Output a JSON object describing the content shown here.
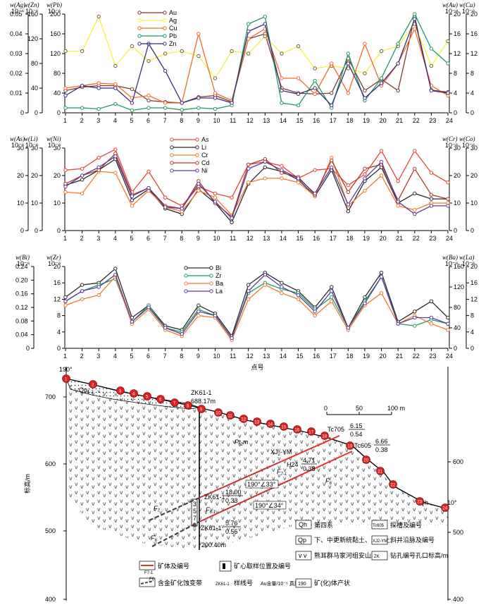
{
  "chart_data": [
    {
      "type": "line",
      "x": [
        1,
        2,
        3,
        4,
        5,
        6,
        7,
        8,
        9,
        10,
        11,
        12,
        13,
        14,
        15,
        16,
        17,
        18,
        19,
        20,
        21,
        22,
        23,
        24
      ],
      "left_axes": [
        {
          "label": "w(Ag)",
          "unit": "10⁻⁶",
          "ylim": [
            0,
            0.05
          ],
          "ticks": [
            "0",
            "0.01",
            "0.02",
            "0.03",
            "0.04",
            "0.05"
          ]
        },
        {
          "label": "w(Zn)",
          "unit": "10⁻⁶",
          "ylim": [
            0,
            160
          ],
          "ticks": [
            "0",
            "40",
            "80",
            "120",
            "160"
          ]
        },
        {
          "label": "w(Pb)",
          "unit": "10⁻⁶",
          "ylim": [
            0,
            200
          ],
          "ticks": [
            "0",
            "40",
            "80",
            "120",
            "160",
            "200"
          ]
        }
      ],
      "right_axes": [
        {
          "label": "w(Au)",
          "unit": "10⁻⁹",
          "ylim": [
            0,
            20
          ],
          "ticks": [
            "0",
            "4",
            "8",
            "12",
            "16",
            "20"
          ]
        },
        {
          "label": "w(Cu)",
          "unit": "10⁻⁶",
          "ylim": [
            0,
            20
          ],
          "ticks": [
            "0",
            "4",
            "8",
            "12",
            "16",
            "20"
          ]
        }
      ],
      "series": [
        {
          "name": "Au",
          "color": "#7a3b2e",
          "values": [
            4.5,
            5.2,
            5.5,
            5.5,
            4.8,
            2.5,
            2.2,
            2.0,
            3.2,
            3.5,
            2.2,
            15.0,
            16.0,
            5.0,
            4.0,
            3.8,
            4.0,
            11.0,
            4.5,
            6.8,
            4.5,
            19.5,
            4.6,
            4.2
          ]
        },
        {
          "name": "Ag",
          "color": "#f7ef3a",
          "values": [
            12.5,
            12.5,
            19.5,
            9.5,
            13.5,
            10.5,
            12.0,
            12.5,
            11.5,
            7.0,
            12.5,
            12.0,
            15.5,
            12.0,
            13.5,
            9.0,
            9.5,
            9.0,
            8.0,
            12.5,
            13.5,
            18.0,
            9.5,
            14.5
          ]
        },
        {
          "name": "Cu",
          "color": "#f06a2a",
          "values": [
            5.0,
            5.5,
            6.0,
            5.8,
            3.0,
            3.5,
            2.0,
            2.0,
            16.0,
            4.0,
            2.5,
            15.0,
            17.0,
            7.0,
            7.0,
            3.8,
            10.0,
            4.0,
            14.0,
            5.5,
            10.0,
            17.0,
            5.5,
            3.5
          ]
        },
        {
          "name": "Pb",
          "color": "#1e9a5e",
          "values": [
            1.0,
            1.0,
            0.8,
            1.8,
            0.5,
            1.0,
            1.0,
            0.6,
            1.0,
            0.8,
            1.5,
            18.0,
            19.5,
            2.0,
            1.5,
            6.5,
            1.0,
            12.0,
            2.5,
            7.0,
            14.0,
            20.0,
            13.0,
            10.0
          ]
        },
        {
          "name": "Zn",
          "color": "#3d2b7a",
          "values": [
            3.5,
            5.5,
            5.0,
            5.0,
            2.0,
            14.0,
            8.5,
            2.0,
            3.0,
            3.0,
            2.0,
            16.5,
            18.0,
            4.5,
            3.8,
            5.0,
            1.5,
            10.0,
            3.0,
            6.0,
            10.0,
            19.0,
            4.5,
            4.0
          ]
        }
      ],
      "xlabel": ""
    },
    {
      "type": "line",
      "x": [
        1,
        2,
        3,
        4,
        5,
        6,
        7,
        8,
        9,
        10,
        11,
        12,
        13,
        14,
        15,
        16,
        17,
        18,
        19,
        20,
        21,
        22,
        23,
        24
      ],
      "left_axes": [
        {
          "label": "w(As)",
          "unit": "10⁻⁶",
          "ylim": [
            0,
            30
          ],
          "ticks": [
            "0",
            "10",
            "20",
            "30"
          ]
        },
        {
          "label": "w(Li)",
          "unit": "10⁻⁶",
          "ylim": [
            0,
            30
          ],
          "ticks": [
            "0",
            "10",
            "20",
            "30"
          ]
        },
        {
          "label": "w(Ni)",
          "unit": "10⁻⁶",
          "ylim": [
            0,
            30
          ],
          "ticks": [
            "0",
            "10",
            "20",
            "30"
          ]
        }
      ],
      "right_axes": [
        {
          "label": "w(Cr)",
          "unit": "10⁻⁶",
          "ylim": [
            0,
            30
          ],
          "ticks": [
            "0",
            "10",
            "20",
            "30"
          ]
        },
        {
          "label": "w(Co)",
          "unit": "10⁻⁶",
          "ylim": [
            0,
            30
          ],
          "ticks": [
            "0",
            "10",
            "20",
            "30"
          ]
        }
      ],
      "series": [
        {
          "name": "As",
          "color": "#e8433a",
          "values": [
            22.0,
            22.5,
            26.5,
            29.5,
            14.0,
            21.5,
            12.0,
            9.0,
            16.0,
            13.5,
            12.0,
            24.0,
            25.0,
            23.5,
            19.0,
            22.0,
            22.5,
            16.5,
            20.5,
            29.0,
            18.0,
            29.0,
            21.0,
            17.5
          ]
        },
        {
          "name": "Li",
          "color": "#2a2a2a",
          "values": [
            16.5,
            18.5,
            22.0,
            26.0,
            11.0,
            15.0,
            8.0,
            6.0,
            15.0,
            10.0,
            3.0,
            17.0,
            23.0,
            21.5,
            18.5,
            12.5,
            22.0,
            7.0,
            18.0,
            23.0,
            10.0,
            13.5,
            11.5,
            11.5
          ]
        },
        {
          "name": "Cr",
          "color": "#f07a2a",
          "values": [
            14.0,
            13.5,
            21.5,
            21.0,
            9.0,
            14.5,
            8.5,
            7.0,
            14.5,
            12.0,
            5.5,
            17.5,
            19.0,
            19.0,
            17.5,
            12.5,
            26.5,
            9.0,
            14.5,
            20.0,
            9.0,
            7.5,
            10.0,
            10.0
          ]
        },
        {
          "name": "Cd",
          "color": "#b03a2a",
          "values": [
            17.0,
            20.0,
            22.0,
            28.0,
            13.0,
            15.5,
            9.0,
            8.0,
            18.0,
            10.0,
            5.0,
            24.0,
            26.0,
            21.0,
            19.5,
            13.0,
            25.5,
            14.0,
            22.5,
            24.0,
            11.0,
            22.5,
            13.0,
            11.5
          ]
        },
        {
          "name": "Ni",
          "color": "#5a3a9a",
          "values": [
            16.0,
            20.0,
            23.0,
            27.0,
            12.5,
            15.5,
            8.5,
            8.0,
            17.0,
            10.5,
            4.5,
            22.5,
            25.0,
            22.0,
            19.0,
            13.5,
            23.0,
            9.5,
            19.0,
            25.0,
            10.5,
            6.0,
            9.0,
            9.0
          ]
        }
      ],
      "xlabel": ""
    },
    {
      "type": "line",
      "x": [
        1,
        2,
        3,
        4,
        5,
        6,
        7,
        8,
        9,
        10,
        11,
        12,
        13,
        14,
        15,
        16,
        17,
        18,
        19,
        20,
        21,
        22,
        23,
        24
      ],
      "left_axes": [
        {
          "label": "w(Bi)",
          "unit": "10⁻⁶",
          "ylim": [
            0,
            0.24
          ],
          "ticks": [
            "0",
            "0.04",
            "0.08",
            "0.12",
            "0.16",
            "0.20",
            "0.24"
          ]
        },
        {
          "label": "w(Zr)",
          "unit": "10⁻⁶",
          "ylim": [
            0,
            20
          ],
          "ticks": [
            "0",
            "4",
            "8",
            "12",
            "16",
            "20"
          ]
        }
      ],
      "right_axes": [
        {
          "label": "w(Ba)",
          "unit": "10⁻⁶",
          "ylim": [
            0,
            160
          ],
          "ticks": [
            "0",
            "40",
            "80",
            "120",
            "160"
          ]
        },
        {
          "label": "w(La)",
          "unit": "10⁻⁶",
          "ylim": [
            0,
            20
          ],
          "ticks": [
            "0",
            "4",
            "8",
            "12",
            "16",
            "20"
          ]
        }
      ],
      "series": [
        {
          "name": "Bi",
          "color": "#2a2a2a",
          "values": [
            12.5,
            15.5,
            16.0,
            19.5,
            7.5,
            10.5,
            5.5,
            4.5,
            10.5,
            8.5,
            3.0,
            15.5,
            18.5,
            16.0,
            14.0,
            10.0,
            15.0,
            5.0,
            12.5,
            18.5,
            6.5,
            9.0,
            11.5,
            7.5
          ]
        },
        {
          "name": "Zr",
          "color": "#1e9a5e",
          "values": [
            11.5,
            14.0,
            15.5,
            17.0,
            6.5,
            10.5,
            5.0,
            4.0,
            9.5,
            8.0,
            2.5,
            13.5,
            16.0,
            14.5,
            13.5,
            9.5,
            12.5,
            5.0,
            11.5,
            17.5,
            6.0,
            5.5,
            7.0,
            6.0
          ]
        },
        {
          "name": "Ba",
          "color": "#f07a2a",
          "values": [
            10.5,
            12.0,
            13.0,
            17.5,
            6.0,
            9.5,
            4.5,
            3.0,
            8.0,
            7.5,
            2.0,
            12.0,
            15.5,
            13.5,
            12.0,
            8.0,
            11.5,
            4.5,
            10.5,
            13.5,
            6.0,
            8.0,
            6.0,
            4.5
          ]
        },
        {
          "name": "La",
          "color": "#5a3a9a",
          "values": [
            11.5,
            14.0,
            15.0,
            18.0,
            6.5,
            10.0,
            5.0,
            3.5,
            9.0,
            8.0,
            2.5,
            14.0,
            18.0,
            15.0,
            13.0,
            9.0,
            14.0,
            5.0,
            11.0,
            17.5,
            6.0,
            7.5,
            7.5,
            6.0
          ]
        }
      ],
      "xlabel": "点号"
    }
  ],
  "section": {
    "left_axis": {
      "label": "标高/m",
      "ticks": [
        "700",
        "600",
        "500",
        "400"
      ]
    },
    "right_axis": {
      "ticks": [
        "600",
        "500",
        "400"
      ]
    },
    "azimuth_left": "190°",
    "azimuth_right": "10°",
    "drill_label": "ZK61-1",
    "drill_elev": "688.17m",
    "drill_depth": "200.40m",
    "zk_a": "ZK61-1",
    "zk_a_grade": "18.00",
    "zk_a_thick": "0.33",
    "zk_b": "ZK61-1",
    "zk_b_grade": "5.76",
    "zk_b_thick": "0.56",
    "tc705": "Tc705",
    "tc705_grade": "6.15",
    "tc705_thick": "0.54",
    "tc605": "Tc605",
    "tc605_grade": "6.66",
    "tc605_thick": "0.38",
    "xj": "XJ",
    "xj_sub": "2",
    "xj_tail": "-YM",
    "h24": "H24",
    "h24_grade": "4.71",
    "h24_thick": "0.38",
    "f7_1": "F",
    "f7_1_sub": "7-1",
    "f7": "F",
    "f7_sub": "7",
    "f6": "F",
    "f6_sub": "6",
    "f6_1": "F",
    "f6_1_sub": "6-1",
    "att1": "190°∠33°",
    "att2": "190°∠34°",
    "qp": "Qp",
    "qp_sub": "1-2",
    "pt": "Pt",
    "pt_sub": "2",
    "pt_tail": "m",
    "qh": "Qh",
    "scale": [
      "0",
      "50",
      "100 m"
    ],
    "points": [
      "1",
      "2",
      "3",
      "4",
      "5",
      "6",
      "7",
      "8",
      "9",
      "10",
      "11",
      "12",
      "13",
      "14",
      "15",
      "16",
      "17",
      "18",
      "19",
      "20",
      "21",
      "22",
      "23",
      "24"
    ],
    "core": [
      "1",
      "3",
      "5",
      "7",
      "9"
    ],
    "legend": [
      {
        "sym": "Qh",
        "text": "第四系"
      },
      {
        "sym": "Tc605",
        "text": "探槽及编号"
      },
      {
        "sym": "Qp",
        "text": "下、中更新统黏土、亚黏土"
      },
      {
        "sym": "XJ2-YM",
        "text": "斜井沿脉及编号"
      },
      {
        "sym": "v v",
        "text": "熊耳群马家河组安山岩"
      },
      {
        "sym": "ZK",
        "text": "钻孔编号孔口标高/m"
      },
      {
        "sym": "F7-1",
        "text": "矿体及编号"
      },
      {
        "sym": "core",
        "text": "矿心取样位置及编号"
      },
      {
        "sym": "F6",
        "text": "含金矿化蚀变带"
      },
      {
        "sym": "ZK61-1",
        "text": "样线号"
      },
      {
        "sym": "Au",
        "text": "Au含量/10⁻⁶ 真厚度/m"
      },
      {
        "sym": "190",
        "text": "矿(化)体产状"
      }
    ]
  }
}
